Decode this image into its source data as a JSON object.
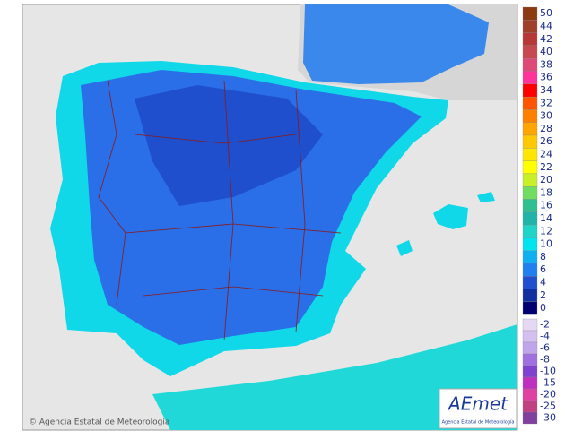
{
  "map": {
    "credit": "© Agencia Estatal de Meteorología",
    "logo": {
      "name": "AEmet",
      "subtitle": "Agencia Estatal de Meteorología"
    },
    "legend": {
      "items": [
        {
          "label": 50,
          "color": "#8b3a12"
        },
        {
          "label": 44,
          "color": "#a0402a"
        },
        {
          "label": 42,
          "color": "#b83838"
        },
        {
          "label": 40,
          "color": "#c84850"
        },
        {
          "label": 38,
          "color": "#e04878"
        },
        {
          "label": 36,
          "color": "#ff3399"
        },
        {
          "label": 34,
          "color": "#ff0000"
        },
        {
          "label": 32,
          "color": "#ff5500"
        },
        {
          "label": 30,
          "color": "#ff8000"
        },
        {
          "label": 28,
          "color": "#ffa500"
        },
        {
          "label": 26,
          "color": "#ffc800"
        },
        {
          "label": 24,
          "color": "#ffe600"
        },
        {
          "label": 22,
          "color": "#ffff00"
        },
        {
          "label": 20,
          "color": "#c8f028"
        },
        {
          "label": 18,
          "color": "#70dc60"
        },
        {
          "label": 16,
          "color": "#30c090"
        },
        {
          "label": 14,
          "color": "#20b4a8"
        },
        {
          "label": 12,
          "color": "#20d4c8"
        },
        {
          "label": 10,
          "color": "#00e4f0"
        },
        {
          "label": 8,
          "color": "#10b0f0"
        },
        {
          "label": 6,
          "color": "#2080f0"
        },
        {
          "label": 4,
          "color": "#2050d0"
        },
        {
          "label": 2,
          "color": "#1030a0"
        },
        {
          "label": 0,
          "color": "#000070"
        }
      ],
      "negative_items": [
        {
          "label": -2,
          "color": "#e4d8f4"
        },
        {
          "label": -4,
          "color": "#d4c0f0"
        },
        {
          "label": -6,
          "color": "#c0a4ec"
        },
        {
          "label": -8,
          "color": "#a070e0"
        },
        {
          "label": -10,
          "color": "#8040d0"
        },
        {
          "label": -15,
          "color": "#c030c0"
        },
        {
          "label": -20,
          "color": "#e040a0"
        },
        {
          "label": -25,
          "color": "#c04080"
        },
        {
          "label": -30,
          "color": "#8040a0"
        }
      ]
    }
  }
}
